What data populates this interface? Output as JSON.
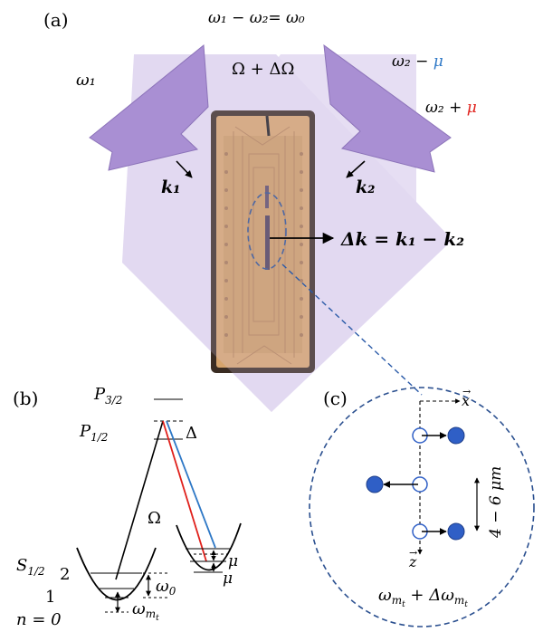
{
  "panel_a": {
    "label": "(a)",
    "freq_condition": {
      "lhs": "ω₁ − ω₂",
      "rhs": "= ω₀"
    },
    "rabi": "Ω + ΔΩ",
    "beam1": {
      "freq": "ω₁",
      "wavevector": "k₁"
    },
    "beam2": {
      "freq_minus": "ω₂ − ",
      "freq_plus": "ω₂ + ",
      "mu": "μ",
      "wavevector": "k₂"
    },
    "delta_k": "Δk = k₁ − k₂",
    "colors": {
      "beam": "#a98fd3",
      "beam_overlap": "#e2d9f1",
      "chip": "#d9a56c",
      "chip_dark": "#a87a4d",
      "mu_blue": "#2e78c6",
      "mu_red": "#e0201b"
    }
  },
  "panel_b": {
    "label": "(b)",
    "p32": "P",
    "p32_sub": "3/2",
    "p12": "P",
    "p12_sub": "1/2",
    "detuning": "Δ",
    "rabi": "Ω",
    "s12": "S",
    "s12_sub": "1/2",
    "level_2": "2",
    "level_1": "1",
    "level_0": "n = 0",
    "omega0": "ω",
    "omega0_sub": "0",
    "omega_mt": "ω",
    "omega_mt_sub": "m",
    "omega_mt_subsub": "t",
    "mu_upper": "μ",
    "mu_lower": "μ"
  },
  "panel_c": {
    "label": "(c)",
    "x_axis": "x",
    "z_axis": "z",
    "spacing": "4 − 6 μm",
    "freq": "ω",
    "freq_sub": "m",
    "freq_subsub": "t",
    "freq_plus": " + Δω",
    "ion_color": "#2f5fc6"
  }
}
